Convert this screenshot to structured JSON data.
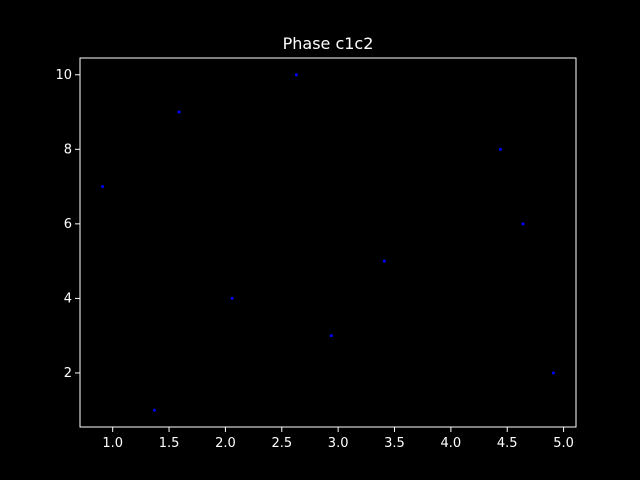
{
  "chart_data": {
    "type": "scatter",
    "title": "Phase c1c2",
    "xlabel": "",
    "ylabel": "",
    "xlim": [
      0.71,
      5.11
    ],
    "ylim": [
      0.55,
      10.45
    ],
    "x_ticks": [
      "1.0",
      "1.5",
      "2.0",
      "2.5",
      "3.0",
      "3.5",
      "4.0",
      "4.5",
      "5.0"
    ],
    "y_ticks": [
      "2",
      "4",
      "6",
      "8",
      "10"
    ],
    "grid": false,
    "legend": "none",
    "colors": {
      "background": "#000000",
      "axes": "#ffffff",
      "text": "#ffffff",
      "points": "#0000ff"
    },
    "series": [
      {
        "x": [
          0.91,
          1.37,
          1.59,
          2.06,
          2.63,
          2.94,
          3.41,
          4.44,
          4.64,
          4.91
        ],
        "y": [
          7,
          1,
          9,
          4,
          10,
          3,
          5,
          8,
          6,
          2
        ]
      }
    ]
  }
}
